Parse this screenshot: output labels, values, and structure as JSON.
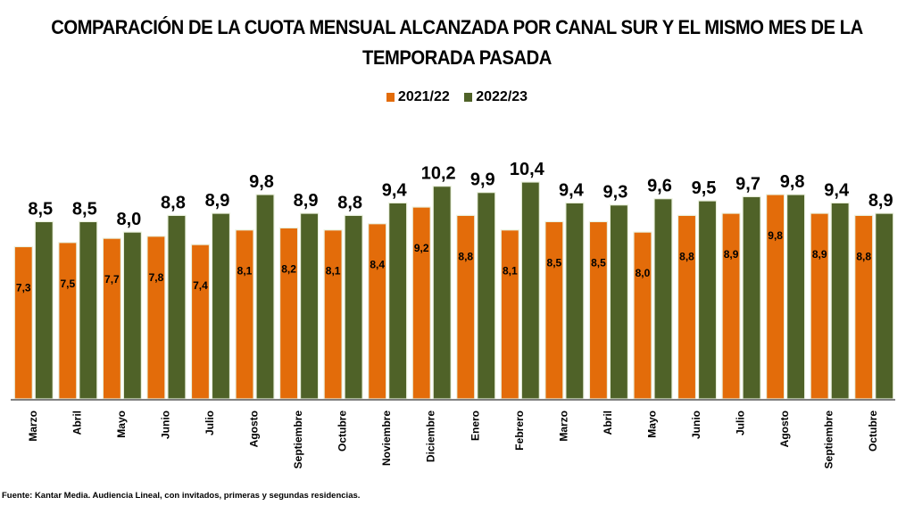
{
  "chart_data": {
    "type": "bar",
    "title": "COMPARACIÓN DE LA CUOTA MENSUAL ALCANZADA POR CANAL SUR Y EL MISMO MES DE LA TEMPORADA PASADA",
    "title_lines": [
      "COMPARACIÓN DE LA CUOTA MENSUAL ALCANZADA POR CANAL SUR Y EL MISMO MES DE LA",
      "TEMPORADA PASADA"
    ],
    "xlabel": "",
    "ylabel": "",
    "ylim": [
      0,
      10.4
    ],
    "grid": false,
    "legend_position": "top-center",
    "categories": [
      "Marzo",
      "Abril",
      "Mayo",
      "Junio",
      "Julio",
      "Agosto",
      "Septiembre",
      "Octubre",
      "Noviembre",
      "Diciembre",
      "Enero",
      "Febrero",
      "Marzo",
      "Abril",
      "Mayo",
      "Junio",
      "Julio",
      "Agosto",
      "Septiembre",
      "Octubre"
    ],
    "series": [
      {
        "name": "2021/22",
        "color": "#E36C0A",
        "values": [
          7.3,
          7.5,
          7.7,
          7.8,
          7.4,
          8.1,
          8.2,
          8.1,
          8.4,
          9.2,
          8.8,
          8.1,
          8.5,
          8.5,
          8.0,
          8.8,
          8.9,
          9.8,
          8.9,
          8.8
        ],
        "labels": [
          "7,3",
          "7,5",
          "7,7",
          "7,8",
          "7,4",
          "8,1",
          "8,2",
          "8,1",
          "8,4",
          "9,2",
          "8,8",
          "8,1",
          "8,5",
          "8,5",
          "8,0",
          "8,8",
          "8,9",
          "9,8",
          "8,9",
          "8,8"
        ]
      },
      {
        "name": "2022/23",
        "color": "#4F6228",
        "values": [
          8.5,
          8.5,
          8.0,
          8.8,
          8.9,
          9.8,
          8.9,
          8.8,
          9.4,
          10.2,
          9.9,
          10.4,
          9.4,
          9.3,
          9.6,
          9.5,
          9.7,
          9.8,
          9.4,
          8.9
        ],
        "labels": [
          "8,5",
          "8,5",
          "8,0",
          "8,8",
          "8,9",
          "9,8",
          "8,9",
          "8,8",
          "9,4",
          "10,2",
          "9,9",
          "10,4",
          "9,4",
          "9,3",
          "9,6",
          "9,5",
          "9,7",
          "9,8",
          "9,4",
          "8,9"
        ]
      }
    ],
    "source": "Fuente: Kantar Media. Audiencia Lineal, con invitados, primeras y segundas residencias."
  }
}
